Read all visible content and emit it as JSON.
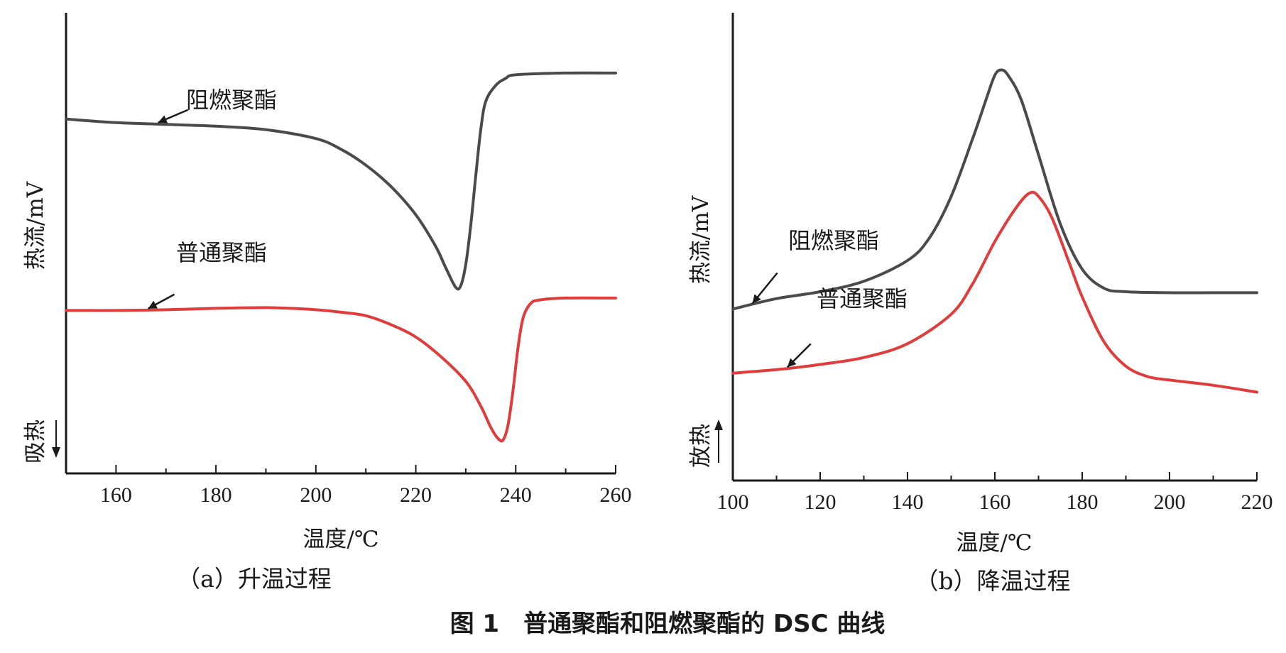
{
  "figure_caption": "图 1　普通聚酯和阻燃聚酯的 DSC 曲线",
  "colors": {
    "flame_retardant": "#4a4a4a",
    "ordinary": "#e03c3c",
    "axis": "#1a1a1a"
  },
  "chart_data": [
    {
      "type": "line",
      "panel_caption": "（a）升温过程",
      "xlabel": "温度/℃",
      "ylabel": "热流/mV",
      "direction_note": "吸热",
      "direction_arrow": "down",
      "xlim": [
        150,
        260
      ],
      "x_ticks": [
        160,
        180,
        200,
        220,
        240,
        260
      ],
      "y_ticks_shown": false,
      "grid": false,
      "series": [
        {
          "name": "阻燃聚酯",
          "color": "#4a4a4a",
          "points": [
            [
              150,
              10.0
            ],
            [
              160,
              9.9
            ],
            [
              170,
              9.85
            ],
            [
              180,
              9.8
            ],
            [
              190,
              9.7
            ],
            [
              200,
              9.45
            ],
            [
              205,
              9.15
            ],
            [
              210,
              8.7
            ],
            [
              215,
              8.1
            ],
            [
              220,
              7.3
            ],
            [
              224,
              6.4
            ],
            [
              226,
              5.8
            ],
            [
              228,
              5.25
            ],
            [
              229,
              5.3
            ],
            [
              230,
              5.9
            ],
            [
              231,
              7.0
            ],
            [
              232,
              8.4
            ],
            [
              233,
              9.7
            ],
            [
              234,
              10.5
            ],
            [
              236,
              10.95
            ],
            [
              238,
              11.15
            ],
            [
              240,
              11.25
            ],
            [
              250,
              11.3
            ],
            [
              260,
              11.3
            ]
          ]
        },
        {
          "name": "普通聚酯",
          "color": "#e03c3c",
          "points": [
            [
              150,
              4.6
            ],
            [
              160,
              4.6
            ],
            [
              170,
              4.62
            ],
            [
              180,
              4.66
            ],
            [
              190,
              4.68
            ],
            [
              195,
              4.66
            ],
            [
              200,
              4.62
            ],
            [
              205,
              4.55
            ],
            [
              210,
              4.45
            ],
            [
              215,
              4.2
            ],
            [
              220,
              3.85
            ],
            [
              225,
              3.3
            ],
            [
              230,
              2.6
            ],
            [
              233,
              1.9
            ],
            [
              235,
              1.3
            ],
            [
              236.5,
              0.98
            ],
            [
              237.5,
              0.95
            ],
            [
              238.5,
              1.4
            ],
            [
              239.5,
              2.4
            ],
            [
              240.5,
              3.6
            ],
            [
              241.5,
              4.4
            ],
            [
              243,
              4.8
            ],
            [
              245,
              4.9
            ],
            [
              250,
              4.95
            ],
            [
              260,
              4.95
            ]
          ]
        }
      ],
      "annotations": [
        {
          "text": "阻燃聚酯",
          "target_series": "阻燃聚酯",
          "target_x": 168
        },
        {
          "text": "普通聚酯",
          "target_series": "普通聚酯",
          "target_x": 166
        }
      ]
    },
    {
      "type": "line",
      "panel_caption": "（b）降温过程",
      "xlabel": "温度/℃",
      "ylabel": "热流/mV",
      "direction_note": "放热",
      "direction_arrow": "up",
      "xlim": [
        100,
        220
      ],
      "x_ticks": [
        100,
        120,
        140,
        160,
        180,
        200,
        220
      ],
      "y_ticks_shown": false,
      "grid": false,
      "series": [
        {
          "name": "阻燃聚酯",
          "color": "#4a4a4a",
          "points": [
            [
              100,
              4.95
            ],
            [
              110,
              5.25
            ],
            [
              120,
              5.45
            ],
            [
              130,
              5.75
            ],
            [
              140,
              6.35
            ],
            [
              145,
              7.0
            ],
            [
              150,
              8.2
            ],
            [
              155,
              9.9
            ],
            [
              158,
              11.0
            ],
            [
              160,
              11.7
            ],
            [
              161.5,
              11.85
            ],
            [
              163,
              11.7
            ],
            [
              166,
              11.0
            ],
            [
              170,
              9.4
            ],
            [
              175,
              7.4
            ],
            [
              180,
              6.1
            ],
            [
              185,
              5.55
            ],
            [
              190,
              5.45
            ],
            [
              200,
              5.42
            ],
            [
              210,
              5.42
            ],
            [
              220,
              5.42
            ]
          ]
        },
        {
          "name": "普通聚酯",
          "color": "#e03c3c",
          "points": [
            [
              100,
              3.1
            ],
            [
              110,
              3.2
            ],
            [
              120,
              3.35
            ],
            [
              130,
              3.55
            ],
            [
              140,
              3.95
            ],
            [
              150,
              4.8
            ],
            [
              155,
              5.7
            ],
            [
              160,
              6.9
            ],
            [
              165,
              7.9
            ],
            [
              168,
              8.3
            ],
            [
              170,
              8.2
            ],
            [
              173,
              7.6
            ],
            [
              177,
              6.3
            ],
            [
              180,
              5.3
            ],
            [
              185,
              4.0
            ],
            [
              190,
              3.3
            ],
            [
              195,
              3.0
            ],
            [
              200,
              2.9
            ],
            [
              210,
              2.75
            ],
            [
              220,
              2.55
            ]
          ]
        }
      ],
      "annotations": [
        {
          "text": "阻燃聚酯",
          "target_series": "阻燃聚酯",
          "target_x": 104
        },
        {
          "text": "普通聚酯",
          "target_series": "普通聚酯",
          "target_x": 112
        }
      ]
    }
  ]
}
